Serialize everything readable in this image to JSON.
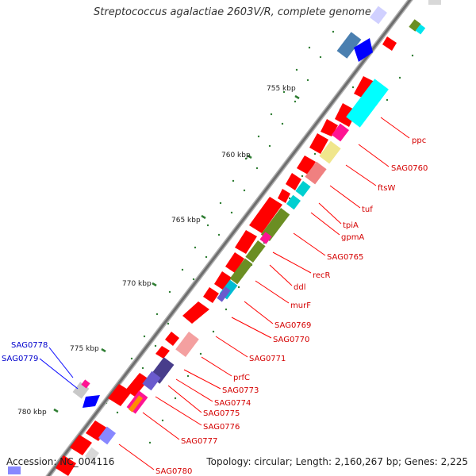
{
  "map": {
    "title": "Streptococcus agalactiae 2603V/R, complete genome",
    "accession_label": "Accession: NC_004116",
    "summary": "Topology: circular; Length: 2,160,267 bp; Genes: 2,225"
  },
  "ticks": [
    "755 kbp",
    "760 kbp",
    "765 kbp",
    "770 kbp",
    "775 kbp",
    "780 kbp"
  ],
  "gene_labels_right": [
    "ppc",
    "SAG0760",
    "ftsW",
    "tuf",
    "tpiA",
    "gpmA",
    "SAG0765",
    "recR",
    "ddl",
    "murF",
    "SAG0769",
    "SAG0770",
    "SAG0771",
    "prfC",
    "SAG0773",
    "SAG0774",
    "SAG0775",
    "SAG0776",
    "SAG0777",
    "SAG0780"
  ],
  "gene_labels_left": [
    "SAG0778",
    "SAG0779"
  ],
  "colors": {
    "red": "#ff0000",
    "blue": "#0000ff",
    "backbone": "#808080",
    "tick": "#2e7d32"
  }
}
